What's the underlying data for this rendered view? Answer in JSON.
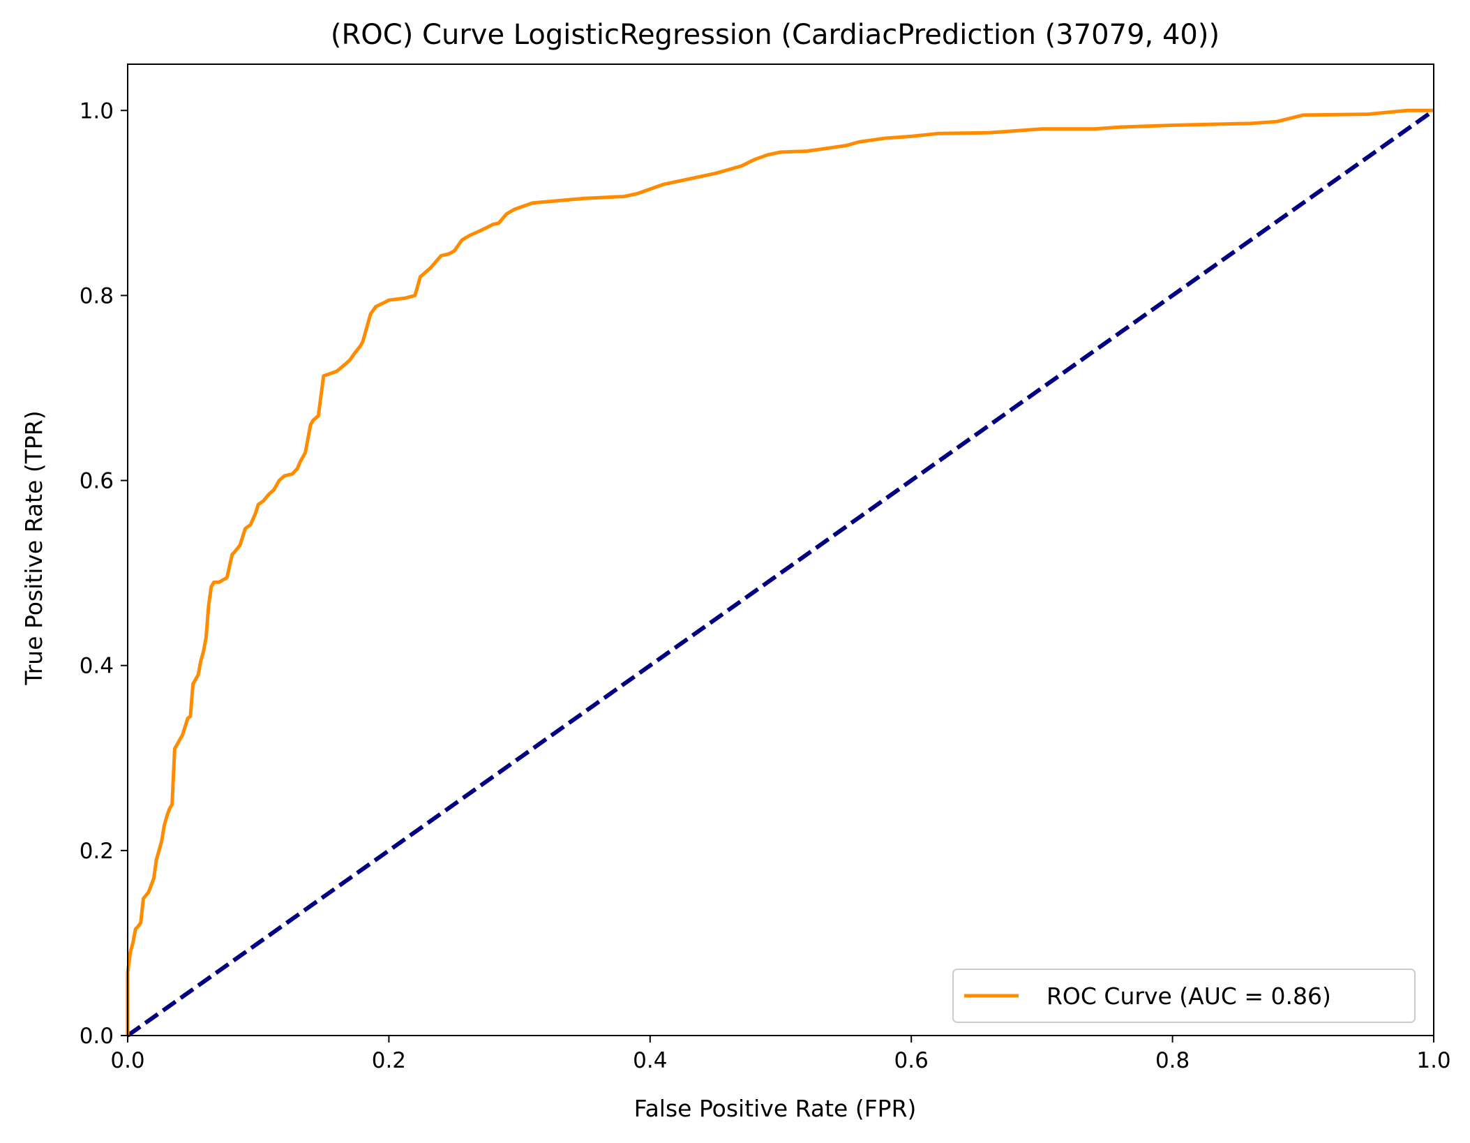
{
  "chart_data": {
    "type": "line",
    "title": "(ROC) Curve LogisticRegression (CardiacPrediction (37079, 40))",
    "xlabel": "False Positive Rate (FPR)",
    "ylabel": "True Positive Rate (TPR)",
    "xlim": [
      0.0,
      1.0
    ],
    "ylim": [
      0.0,
      1.05
    ],
    "xticks": [
      "0.0",
      "0.2",
      "0.4",
      "0.6",
      "0.8",
      "1.0"
    ],
    "yticks": [
      "0.0",
      "0.2",
      "0.4",
      "0.6",
      "0.8",
      "1.0"
    ],
    "grid": false,
    "legend_position": "lower-right",
    "series": [
      {
        "name": "ROC Curve (AUC = 0.86)",
        "color": "#ff8c00",
        "style": "solid",
        "x": [
          0.0,
          0.0,
          0.002,
          0.004,
          0.006,
          0.008,
          0.01,
          0.012,
          0.016,
          0.02,
          0.022,
          0.026,
          0.028,
          0.03,
          0.032,
          0.034,
          0.036,
          0.038,
          0.04,
          0.042,
          0.046,
          0.048,
          0.05,
          0.054,
          0.056,
          0.058,
          0.06,
          0.062,
          0.064,
          0.066,
          0.07,
          0.076,
          0.08,
          0.082,
          0.086,
          0.09,
          0.094,
          0.098,
          0.1,
          0.104,
          0.108,
          0.112,
          0.116,
          0.12,
          0.126,
          0.13,
          0.132,
          0.136,
          0.14,
          0.142,
          0.146,
          0.15,
          0.16,
          0.166,
          0.17,
          0.174,
          0.178,
          0.18,
          0.182,
          0.186,
          0.19,
          0.196,
          0.2,
          0.212,
          0.22,
          0.224,
          0.228,
          0.232,
          0.24,
          0.246,
          0.25,
          0.256,
          0.262,
          0.27,
          0.28,
          0.284,
          0.29,
          0.296,
          0.31,
          0.35,
          0.38,
          0.39,
          0.4,
          0.41,
          0.43,
          0.45,
          0.46,
          0.47,
          0.48,
          0.49,
          0.5,
          0.52,
          0.54,
          0.55,
          0.56,
          0.58,
          0.6,
          0.62,
          0.66,
          0.68,
          0.7,
          0.74,
          0.76,
          0.8,
          0.86,
          0.88,
          0.9,
          0.95,
          0.98,
          1.0
        ],
        "y": [
          0.0,
          0.068,
          0.09,
          0.1,
          0.115,
          0.118,
          0.122,
          0.148,
          0.155,
          0.17,
          0.19,
          0.21,
          0.227,
          0.237,
          0.245,
          0.25,
          0.31,
          0.315,
          0.32,
          0.325,
          0.343,
          0.345,
          0.38,
          0.39,
          0.405,
          0.415,
          0.43,
          0.465,
          0.485,
          0.49,
          0.49,
          0.495,
          0.52,
          0.523,
          0.53,
          0.548,
          0.552,
          0.565,
          0.574,
          0.578,
          0.585,
          0.59,
          0.6,
          0.605,
          0.607,
          0.613,
          0.62,
          0.63,
          0.66,
          0.665,
          0.67,
          0.713,
          0.718,
          0.725,
          0.73,
          0.738,
          0.745,
          0.75,
          0.76,
          0.78,
          0.788,
          0.792,
          0.795,
          0.797,
          0.8,
          0.82,
          0.825,
          0.83,
          0.843,
          0.845,
          0.848,
          0.86,
          0.865,
          0.87,
          0.877,
          0.878,
          0.888,
          0.893,
          0.9,
          0.905,
          0.907,
          0.91,
          0.915,
          0.92,
          0.926,
          0.932,
          0.936,
          0.94,
          0.947,
          0.952,
          0.955,
          0.956,
          0.96,
          0.962,
          0.966,
          0.97,
          0.972,
          0.975,
          0.976,
          0.978,
          0.98,
          0.98,
          0.982,
          0.984,
          0.986,
          0.988,
          0.995,
          0.996,
          1.0,
          1.0
        ]
      },
      {
        "name": "",
        "color": "#000080",
        "style": "dashed",
        "x": [
          0.0,
          1.0
        ],
        "y": [
          0.0,
          1.0
        ]
      }
    ]
  }
}
